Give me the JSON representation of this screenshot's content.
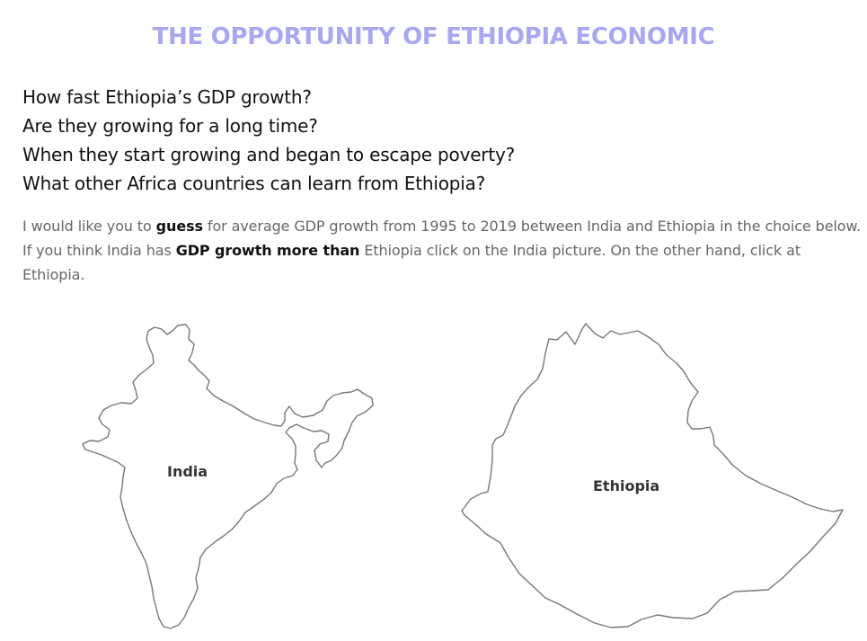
{
  "header": {
    "title": "THE OPPORTUNITY OF ETHIOPIA ECONOMIC"
  },
  "questions": [
    "How fast Ethiopia’s GDP growth?",
    "Are they growing for a long time?",
    "When they start growing and began to escape poverty?",
    "What other Africa countries can learn from Ethiopia?"
  ],
  "instructions": {
    "line1_pre": "I would like you to ",
    "line1_bold": "guess",
    "line1_post": " for average GDP growth from 1995 to 2019 between India and Ethiopia in the choice below.",
    "line2_pre": "If you think India has ",
    "line2_bold": "GDP growth more than",
    "line2_post": " Ethiopia click on the India picture. On the other hand, click at Ethiopia."
  },
  "maps": {
    "india_label": "India",
    "ethiopia_label": "Ethiopia"
  }
}
